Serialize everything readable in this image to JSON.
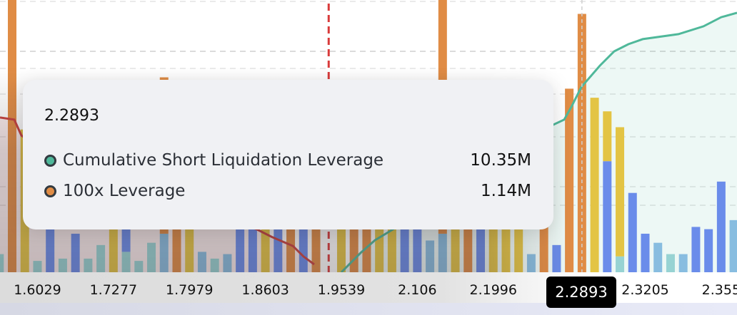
{
  "chart_data": {
    "type": "bar",
    "colors": {
      "orange": "#e08c45",
      "yellow": "#e3c444",
      "blue": "#6a8cea",
      "lightblue": "#88bde0",
      "cyan": "#97d3d3",
      "long_line": "#c8413f",
      "short_line": "#4fb89a",
      "current_price_line": "#d93a3a"
    },
    "bars": [
      [
        [
          "cyan",
          0.08
        ]
      ],
      [
        [
          "orange",
          1.25
        ]
      ],
      [
        [
          "yellow",
          0.63
        ]
      ],
      [
        [
          "cyan",
          0.05
        ]
      ],
      [
        [
          "blue",
          0.42
        ]
      ],
      [
        [
          "cyan",
          0.06
        ]
      ],
      [
        [
          "blue",
          0.17
        ]
      ],
      [
        [
          "cyan",
          0.06
        ]
      ],
      [
        [
          "cyan",
          0.12
        ]
      ],
      [
        [
          "yellow",
          0.51
        ]
      ],
      [
        [
          "cyan",
          0.09
        ],
        [
          "blue",
          0.29
        ]
      ],
      [
        [
          "cyan",
          0.05
        ]
      ],
      [
        [
          "cyan",
          0.13
        ]
      ],
      [
        [
          "lightblue",
          0.17
        ],
        [
          "orange",
          0.69
        ]
      ],
      [
        [
          "orange",
          0.57
        ]
      ],
      [
        [
          "yellow",
          0.48
        ]
      ],
      [
        [
          "lightblue",
          0.09
        ]
      ],
      [
        [
          "cyan",
          0.06
        ]
      ],
      [
        [
          "lightblue",
          0.08
        ]
      ],
      [
        [
          "blue",
          0.32
        ]
      ],
      [
        [
          "blue",
          0.35
        ]
      ],
      [
        [
          "yellow",
          0.45
        ]
      ],
      [
        [
          "blue",
          0.26
        ]
      ],
      [
        [
          "orange",
          0.38
        ]
      ],
      [
        [
          "blue",
          0.29
        ]
      ],
      [
        [
          "orange",
          0.23
        ]
      ],
      [],
      [
        [
          "yellow",
          0.42
        ]
      ],
      [
        [
          "orange",
          0.48
        ]
      ],
      [
        [
          "orange",
          0.54
        ]
      ],
      [
        [
          "yellow",
          0.38
        ]
      ],
      [
        [
          "yellow",
          0.45
        ]
      ],
      [
        [
          "blue",
          0.32
        ]
      ],
      [
        [
          "blue",
          0.35
        ]
      ],
      [
        [
          "lightblue",
          0.14
        ]
      ],
      [
        [
          "lightblue",
          0.17
        ],
        [
          "orange",
          1.06
        ]
      ],
      [
        [
          "yellow",
          0.42
        ]
      ],
      [
        [
          "orange",
          0.38
        ]
      ],
      [
        [
          "blue",
          0.26
        ]
      ],
      [
        [
          "yellow",
          0.48
        ]
      ],
      [
        [
          "yellow",
          0.45
        ]
      ],
      [
        [
          "yellow",
          0.43
        ]
      ],
      [
        [
          "lightblue",
          0.08
        ]
      ],
      [
        [
          "orange",
          0.32
        ]
      ],
      [
        [
          "blue",
          0.12
        ]
      ],
      [
        [
          "orange",
          0.81
        ]
      ],
      [
        [
          "orange",
          1.14
        ]
      ],
      [
        [
          "yellow",
          0.77
        ]
      ],
      [
        [
          "blue",
          0.49
        ],
        [
          "yellow",
          0.22
        ]
      ],
      [
        [
          "cyan",
          0.07
        ],
        [
          "yellow",
          0.57
        ]
      ],
      [
        [
          "blue",
          0.35
        ]
      ],
      [
        [
          "blue",
          0.17
        ]
      ],
      [
        [
          "lightblue",
          0.13
        ]
      ],
      [
        [
          "cyan",
          0.08
        ]
      ],
      [
        [
          "lightblue",
          0.08
        ]
      ],
      [
        [
          "blue",
          0.2
        ]
      ],
      [
        [
          "blue",
          0.19
        ]
      ],
      [
        [
          "blue",
          0.4
        ]
      ],
      [
        [
          "lightblue",
          0.23
        ]
      ]
    ],
    "bar_unit": "M",
    "cumulative_long_line": [
      [
        0.04,
        8.65
      ],
      [
        1.17,
        8.53
      ],
      [
        1.73,
        7.65
      ],
      [
        5.68,
        5.66
      ],
      [
        11.32,
        4.46
      ],
      [
        16.96,
        3.27
      ],
      [
        20.35,
        2.39
      ],
      [
        21.47,
        1.99
      ],
      [
        23.17,
        1.47
      ],
      [
        24.01,
        0.88
      ],
      [
        24.86,
        0.44
      ]
    ],
    "cumulative_short_line": [
      [
        27.0,
        0
      ],
      [
        28.52,
        1.08
      ],
      [
        29.65,
        1.79
      ],
      [
        31.06,
        2.39
      ],
      [
        36.7,
        4.86
      ],
      [
        40.65,
        6.85
      ],
      [
        43.75,
        8.25
      ],
      [
        44.6,
        8.53
      ],
      [
        45.16,
        9.24
      ],
      [
        45.95,
        10.35
      ],
      [
        47.42,
        11.55
      ],
      [
        48.55,
        12.35
      ],
      [
        49.67,
        12.75
      ],
      [
        50.8,
        13.03
      ],
      [
        53.62,
        13.31
      ],
      [
        55.6,
        13.75
      ],
      [
        57.0,
        14.26
      ],
      [
        58.25,
        14.5
      ]
    ],
    "line_unit": "M",
    "current_price_bar": 26,
    "hover_bar": 46,
    "x_ticks": [
      {
        "bar": 3,
        "label": "1.6029"
      },
      {
        "bar": 9,
        "label": "1.7277"
      },
      {
        "bar": 15,
        "label": "1.7979"
      },
      {
        "bar": 21,
        "label": "1.8603"
      },
      {
        "bar": 27,
        "label": "1.9539"
      },
      {
        "bar": 33,
        "label": "2.106"
      },
      {
        "bar": 39,
        "label": "2.1996"
      },
      {
        "bar": 51,
        "label": "2.3205"
      },
      {
        "bar": 57,
        "label": "2.355"
      }
    ],
    "grid": true
  },
  "hover_label": "2.2893",
  "tooltip": {
    "title": "2.2893",
    "rows": [
      {
        "label": "Cumulative Short Liquidation Leverage",
        "value": "10.35M",
        "color": "#4fb89a"
      },
      {
        "label": "100x Leverage",
        "value": "1.14M",
        "color": "#e08c45"
      }
    ]
  }
}
